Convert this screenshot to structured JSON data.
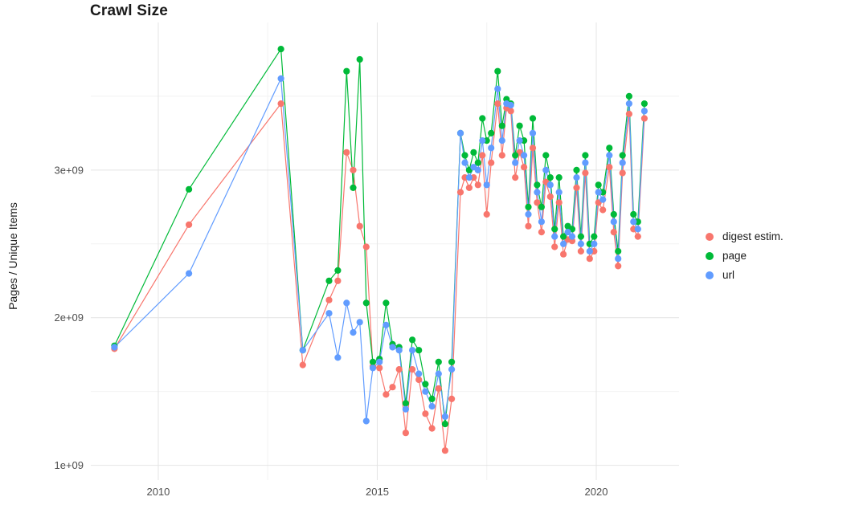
{
  "title": "Crawl Size",
  "ylabel": "Pages / Unique Items",
  "legend": {
    "items": [
      {
        "label": "digest estim.",
        "color": "#F8766D"
      },
      {
        "label": "page",
        "color": "#00BA38"
      },
      {
        "label": "url",
        "color": "#619CFF"
      }
    ]
  },
  "colors": {
    "background": "#ffffff",
    "grid_major": "#e4e4e4",
    "grid_minor": "#f2f2f2",
    "tick_label": "#4d4d4d"
  },
  "chart_data": {
    "type": "line",
    "title": "Crawl Size",
    "xlabel": "",
    "ylabel": "Pages / Unique Items",
    "unit": "pages / unique items, values in billions (1e9)",
    "x_unit": "year",
    "xlim": [
      2008.46,
      2021.89
    ],
    "ylim": [
      0.9,
      4.0
    ],
    "grid": {
      "x_minor": [
        2012.5,
        2017.5
      ],
      "y_minor": [
        1.5,
        2.5,
        3.5
      ]
    },
    "x_ticks": [
      {
        "value": 2010,
        "label": "2010"
      },
      {
        "value": 2015,
        "label": "2015"
      },
      {
        "value": 2020,
        "label": "2020"
      }
    ],
    "y_ticks": [
      {
        "value": 1,
        "label": "1e+09"
      },
      {
        "value": 2,
        "label": "2e+09"
      },
      {
        "value": 3,
        "label": "3e+09"
      }
    ],
    "legend_position": "right",
    "x": [
      2009.0,
      2010.7,
      2012.8,
      2013.3,
      2013.9,
      2014.1,
      2014.3,
      2014.45,
      2014.6,
      2014.75,
      2014.9,
      2015.05,
      2015.2,
      2015.35,
      2015.5,
      2015.65,
      2015.8,
      2015.95,
      2016.1,
      2016.25,
      2016.4,
      2016.55,
      2016.7,
      2016.9,
      2017.0,
      2017.1,
      2017.2,
      2017.3,
      2017.4,
      2017.5,
      2017.6,
      2017.75,
      2017.85,
      2017.95,
      2018.05,
      2018.15,
      2018.25,
      2018.35,
      2018.45,
      2018.55,
      2018.65,
      2018.75,
      2018.85,
      2018.95,
      2019.05,
      2019.15,
      2019.25,
      2019.35,
      2019.45,
      2019.55,
      2019.65,
      2019.75,
      2019.85,
      2019.95,
      2020.05,
      2020.15,
      2020.3,
      2020.4,
      2020.5,
      2020.6,
      2020.75,
      2020.85,
      2020.95,
      2021.1
    ],
    "series": [
      {
        "name": "digest estim.",
        "color": "#F8766D",
        "values": [
          1.79,
          2.63,
          3.45,
          1.68,
          2.12,
          2.25,
          3.12,
          3.0,
          2.62,
          2.48,
          1.67,
          1.66,
          1.48,
          1.53,
          1.65,
          1.22,
          1.65,
          1.58,
          1.35,
          1.25,
          1.52,
          1.1,
          1.45,
          2.85,
          2.95,
          2.88,
          2.95,
          2.9,
          3.1,
          2.7,
          3.05,
          3.45,
          3.1,
          3.42,
          3.4,
          2.95,
          3.12,
          3.02,
          2.62,
          3.15,
          2.78,
          2.58,
          2.92,
          2.82,
          2.48,
          2.78,
          2.43,
          2.53,
          2.52,
          2.88,
          2.45,
          2.98,
          2.4,
          2.45,
          2.78,
          2.73,
          3.02,
          2.58,
          2.35,
          2.98,
          3.38,
          2.6,
          2.55,
          3.35
        ]
      },
      {
        "name": "page",
        "color": "#00BA38",
        "values": [
          1.81,
          2.87,
          3.82,
          1.78,
          2.25,
          2.32,
          3.67,
          2.88,
          3.75,
          2.1,
          1.7,
          1.72,
          2.1,
          1.82,
          1.8,
          1.42,
          1.85,
          1.78,
          1.55,
          1.45,
          1.7,
          1.28,
          1.7,
          3.25,
          3.1,
          3.0,
          3.12,
          3.05,
          3.35,
          3.2,
          3.25,
          3.67,
          3.3,
          3.48,
          3.45,
          3.1,
          3.3,
          3.2,
          2.75,
          3.35,
          2.9,
          2.75,
          3.1,
          2.95,
          2.6,
          2.95,
          2.55,
          2.62,
          2.6,
          3.0,
          2.55,
          3.1,
          2.5,
          2.55,
          2.9,
          2.85,
          3.15,
          2.7,
          2.45,
          3.1,
          3.5,
          2.7,
          2.65,
          3.45
        ]
      },
      {
        "name": "url",
        "color": "#619CFF",
        "values": [
          1.8,
          2.3,
          3.62,
          1.78,
          2.03,
          1.73,
          2.1,
          1.9,
          1.97,
          1.3,
          1.66,
          1.7,
          1.95,
          1.8,
          1.78,
          1.38,
          1.78,
          1.62,
          1.5,
          1.4,
          1.62,
          1.33,
          1.65,
          3.25,
          3.05,
          2.95,
          3.02,
          3.0,
          3.2,
          2.9,
          3.15,
          3.55,
          3.2,
          3.45,
          3.44,
          3.05,
          3.2,
          3.1,
          2.7,
          3.25,
          2.85,
          2.65,
          3.0,
          2.9,
          2.55,
          2.85,
          2.5,
          2.58,
          2.55,
          2.95,
          2.5,
          3.05,
          2.45,
          2.5,
          2.85,
          2.8,
          3.1,
          2.65,
          2.4,
          3.05,
          3.45,
          2.65,
          2.6,
          3.4
        ]
      }
    ]
  }
}
